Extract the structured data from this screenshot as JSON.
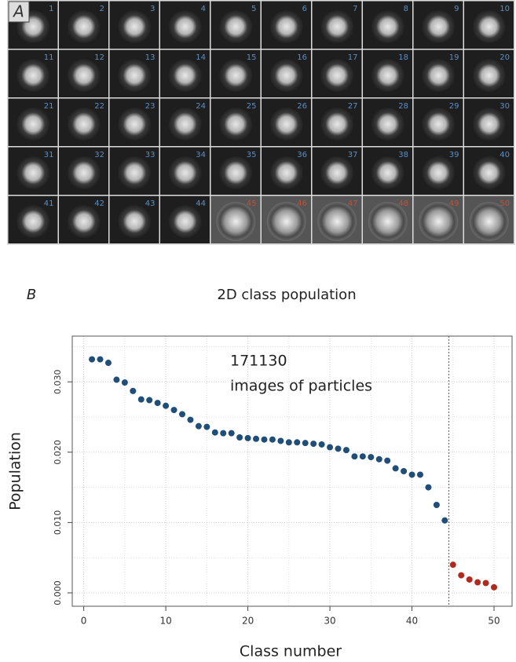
{
  "panel_a": {
    "label": "A",
    "kept_classes": [
      "1",
      "2",
      "3",
      "4",
      "5",
      "6",
      "7",
      "8",
      "9",
      "10",
      "11",
      "12",
      "13",
      "14",
      "15",
      "16",
      "17",
      "18",
      "19",
      "20",
      "21",
      "22",
      "23",
      "24",
      "25",
      "26",
      "27",
      "28",
      "29",
      "30",
      "31",
      "32",
      "33",
      "34",
      "35",
      "36",
      "37",
      "38",
      "39",
      "40",
      "41",
      "42",
      "43",
      "44"
    ],
    "kept_color": "#5b8fc4",
    "rejected_classes": [
      "45",
      "46",
      "47",
      "48",
      "49",
      "50"
    ],
    "rejected_color": "#c0503a"
  },
  "chart_data": {
    "type": "scatter",
    "panel_label": "B",
    "title": "2D class population",
    "annotation": [
      "171130",
      "images of particles"
    ],
    "xlabel": "Class number",
    "ylabel": "Population",
    "series": [
      {
        "color": "#1f4e79",
        "x": [
          1,
          2,
          3,
          4,
          5,
          6,
          7,
          8,
          9,
          10,
          11,
          12,
          13,
          14,
          15,
          16,
          17,
          18,
          19,
          20,
          21,
          22,
          23,
          24,
          25,
          26,
          27,
          28,
          29,
          30,
          31,
          32,
          33,
          34,
          35,
          36,
          37,
          38,
          39,
          40,
          41,
          42,
          43,
          44
        ],
        "values": [
          0.0332,
          0.0332,
          0.0327,
          0.0303,
          0.0299,
          0.0287,
          0.0275,
          0.0274,
          0.027,
          0.0266,
          0.026,
          0.0254,
          0.0246,
          0.0237,
          0.0236,
          0.0228,
          0.0227,
          0.0227,
          0.0221,
          0.022,
          0.0219,
          0.0218,
          0.0218,
          0.0216,
          0.0214,
          0.0214,
          0.0213,
          0.0212,
          0.0211,
          0.0207,
          0.0205,
          0.0203,
          0.0194,
          0.0194,
          0.0193,
          0.019,
          0.0188,
          0.0177,
          0.0173,
          0.0168,
          0.0168,
          0.015,
          0.0125,
          0.0103
        ]
      },
      {
        "color": "#b22a1e",
        "x": [
          45,
          46,
          47,
          48,
          49,
          50
        ],
        "values": [
          0.004,
          0.0025,
          0.0019,
          0.0015,
          0.0014,
          0.0008
        ]
      }
    ],
    "xlim": [
      -1.4,
      52.2
    ],
    "ylim": [
      -0.0019,
      0.0365
    ],
    "xticks": [
      0,
      10,
      20,
      30,
      40,
      50
    ],
    "yticks": [
      {
        "value": 0,
        "label": "0.000"
      },
      {
        "value": 0.01,
        "label": "0.010"
      },
      {
        "value": 0.02,
        "label": "0.020"
      },
      {
        "value": 0.03,
        "label": "0.030"
      }
    ],
    "minor_ygrid": [
      0.005,
      0.015,
      0.025,
      0.035
    ],
    "minor_xgrid": [
      5,
      15,
      25,
      35,
      45
    ],
    "cutoff_x": 44.5,
    "grid": true
  }
}
